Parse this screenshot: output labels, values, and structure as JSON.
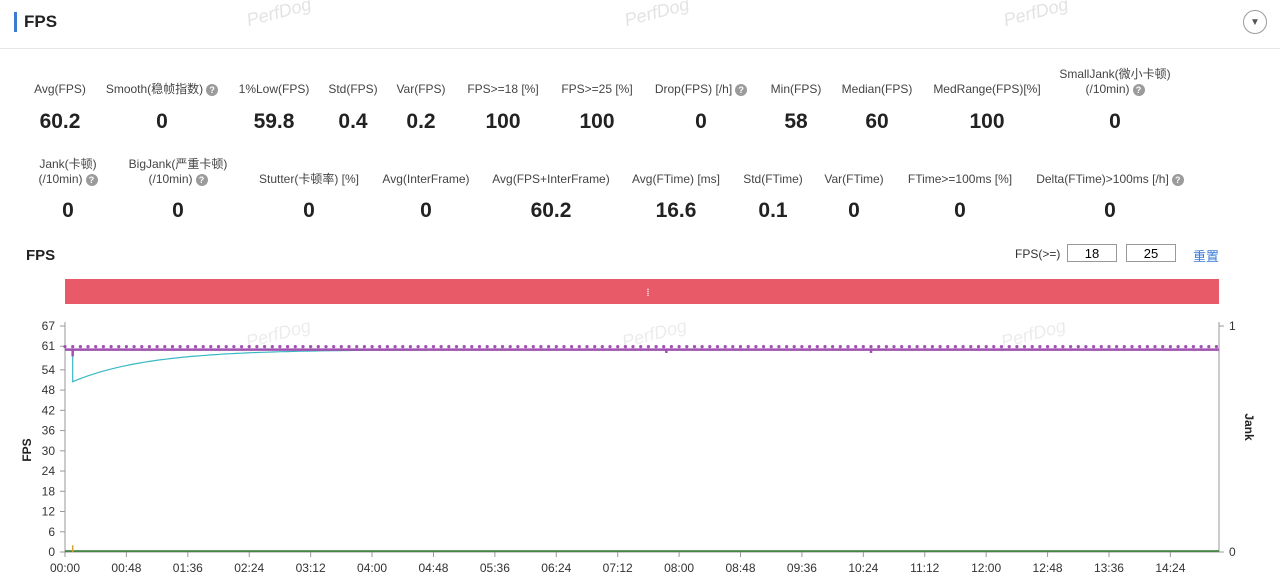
{
  "header": {
    "title": "FPS",
    "collapse_icon": "chevron-down-icon"
  },
  "watermark": "PerfDog",
  "metrics_row1": [
    {
      "label": "Avg(FPS)",
      "value": "60.2",
      "help": false
    },
    {
      "label": "Smooth(稳帧指数)",
      "value": "0",
      "help": true
    },
    {
      "label": "1%Low(FPS)",
      "value": "59.8",
      "help": false
    },
    {
      "label": "Std(FPS)",
      "value": "0.4",
      "help": false
    },
    {
      "label": "Var(FPS)",
      "value": "0.2",
      "help": false
    },
    {
      "label": "FPS>=18 [%]",
      "value": "100",
      "help": false
    },
    {
      "label": "FPS>=25 [%]",
      "value": "100",
      "help": false
    },
    {
      "label": "Drop(FPS) [/h]",
      "value": "0",
      "help": true
    },
    {
      "label": "Min(FPS)",
      "value": "58",
      "help": false
    },
    {
      "label": "Median(FPS)",
      "value": "60",
      "help": false
    },
    {
      "label": "MedRange(FPS)[%]",
      "value": "100",
      "help": false
    },
    {
      "label": "SmallJank(微小卡顿)",
      "label2": "(/10min)",
      "value": "0",
      "help": true
    }
  ],
  "metrics_row2": [
    {
      "label": "Jank(卡顿)",
      "label2": "(/10min)",
      "value": "0",
      "help": true
    },
    {
      "label": "BigJank(严重卡顿)",
      "label2": "(/10min)",
      "value": "0",
      "help": true
    },
    {
      "label": "Stutter(卡顿率) [%]",
      "value": "0",
      "help": false
    },
    {
      "label": "Avg(InterFrame)",
      "value": "0",
      "help": false
    },
    {
      "label": "Avg(FPS+InterFrame)",
      "value": "60.2",
      "help": false
    },
    {
      "label": "Avg(FTime) [ms]",
      "value": "16.6",
      "help": false
    },
    {
      "label": "Std(FTime)",
      "value": "0.1",
      "help": false
    },
    {
      "label": "Var(FTime)",
      "value": "0",
      "help": false
    },
    {
      "label": "FTime>=100ms [%]",
      "value": "0",
      "help": false
    },
    {
      "label": "Delta(FTime)>100ms [/h]",
      "value": "0",
      "help": true
    }
  ],
  "chart_controls": {
    "title": "FPS",
    "threshold_label": "FPS(>=)",
    "threshold_low": "18",
    "threshold_high": "25",
    "reset_label": "重置"
  },
  "chart_data": {
    "type": "line",
    "ylabel": "FPS",
    "y2label": "Jank",
    "ylim": [
      0,
      67
    ],
    "y_ticks": [
      0,
      6,
      12,
      18,
      24,
      30,
      36,
      42,
      48,
      54,
      61,
      67
    ],
    "y2_ticks": [
      0,
      1
    ],
    "x_ticks": [
      "00:00",
      "00:48",
      "01:36",
      "02:24",
      "03:12",
      "04:00",
      "04:48",
      "05:36",
      "06:24",
      "07:12",
      "08:00",
      "08:48",
      "09:36",
      "10:24",
      "11:12",
      "12:00",
      "12:48",
      "13:36",
      "14:24"
    ],
    "duration_seconds": 902,
    "threshold_bar_color": "#e85a68",
    "series": [
      {
        "color": "#a050b0",
        "base": 60,
        "dips": [
          {
            "t": 6,
            "v": 58
          },
          {
            "t": 470,
            "v": 59
          },
          {
            "t": 630,
            "v": 59
          }
        ]
      },
      {
        "color": "#3ab8c4",
        "start": 50.5,
        "settle": 60,
        "settle_seconds": 240
      },
      {
        "color": "#2e7d2e",
        "values": "0",
        "spikes": [
          {
            "t": 6,
            "v": 2
          }
        ]
      }
    ],
    "grid": false,
    "legend": "none"
  }
}
